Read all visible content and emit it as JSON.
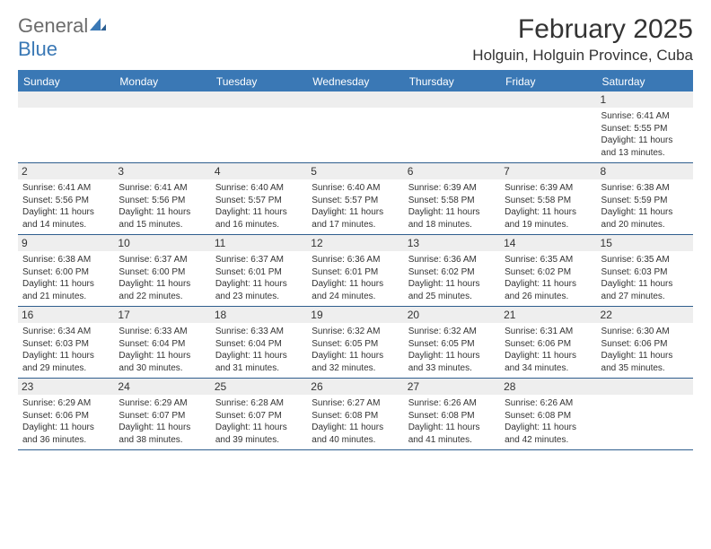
{
  "logo": {
    "text1": "General",
    "text2": "Blue"
  },
  "title": "February 2025",
  "location": "Holguin, Holguin Province, Cuba",
  "colors": {
    "header_bg": "#3a78b5",
    "header_text": "#ffffff",
    "daynum_bg": "#eeeeee",
    "body_text": "#333333",
    "row_border": "#2f5e8e",
    "logo_gray": "#6c6c6c",
    "logo_blue": "#3a78b5"
  },
  "typography": {
    "title_fontsize": 30,
    "location_fontsize": 17,
    "dayheader_fontsize": 12,
    "daynum_fontsize": 12,
    "body_fontsize": 10
  },
  "day_names": [
    "Sunday",
    "Monday",
    "Tuesday",
    "Wednesday",
    "Thursday",
    "Friday",
    "Saturday"
  ],
  "labels": {
    "sunrise": "Sunrise:",
    "sunset": "Sunset:",
    "daylight": "Daylight:"
  },
  "weeks": [
    [
      {
        "empty": true
      },
      {
        "empty": true
      },
      {
        "empty": true
      },
      {
        "empty": true
      },
      {
        "empty": true
      },
      {
        "empty": true
      },
      {
        "day": "1",
        "sunrise": "6:41 AM",
        "sunset": "5:55 PM",
        "daylight": "11 hours and 13 minutes."
      }
    ],
    [
      {
        "day": "2",
        "sunrise": "6:41 AM",
        "sunset": "5:56 PM",
        "daylight": "11 hours and 14 minutes."
      },
      {
        "day": "3",
        "sunrise": "6:41 AM",
        "sunset": "5:56 PM",
        "daylight": "11 hours and 15 minutes."
      },
      {
        "day": "4",
        "sunrise": "6:40 AM",
        "sunset": "5:57 PM",
        "daylight": "11 hours and 16 minutes."
      },
      {
        "day": "5",
        "sunrise": "6:40 AM",
        "sunset": "5:57 PM",
        "daylight": "11 hours and 17 minutes."
      },
      {
        "day": "6",
        "sunrise": "6:39 AM",
        "sunset": "5:58 PM",
        "daylight": "11 hours and 18 minutes."
      },
      {
        "day": "7",
        "sunrise": "6:39 AM",
        "sunset": "5:58 PM",
        "daylight": "11 hours and 19 minutes."
      },
      {
        "day": "8",
        "sunrise": "6:38 AM",
        "sunset": "5:59 PM",
        "daylight": "11 hours and 20 minutes."
      }
    ],
    [
      {
        "day": "9",
        "sunrise": "6:38 AM",
        "sunset": "6:00 PM",
        "daylight": "11 hours and 21 minutes."
      },
      {
        "day": "10",
        "sunrise": "6:37 AM",
        "sunset": "6:00 PM",
        "daylight": "11 hours and 22 minutes."
      },
      {
        "day": "11",
        "sunrise": "6:37 AM",
        "sunset": "6:01 PM",
        "daylight": "11 hours and 23 minutes."
      },
      {
        "day": "12",
        "sunrise": "6:36 AM",
        "sunset": "6:01 PM",
        "daylight": "11 hours and 24 minutes."
      },
      {
        "day": "13",
        "sunrise": "6:36 AM",
        "sunset": "6:02 PM",
        "daylight": "11 hours and 25 minutes."
      },
      {
        "day": "14",
        "sunrise": "6:35 AM",
        "sunset": "6:02 PM",
        "daylight": "11 hours and 26 minutes."
      },
      {
        "day": "15",
        "sunrise": "6:35 AM",
        "sunset": "6:03 PM",
        "daylight": "11 hours and 27 minutes."
      }
    ],
    [
      {
        "day": "16",
        "sunrise": "6:34 AM",
        "sunset": "6:03 PM",
        "daylight": "11 hours and 29 minutes."
      },
      {
        "day": "17",
        "sunrise": "6:33 AM",
        "sunset": "6:04 PM",
        "daylight": "11 hours and 30 minutes."
      },
      {
        "day": "18",
        "sunrise": "6:33 AM",
        "sunset": "6:04 PM",
        "daylight": "11 hours and 31 minutes."
      },
      {
        "day": "19",
        "sunrise": "6:32 AM",
        "sunset": "6:05 PM",
        "daylight": "11 hours and 32 minutes."
      },
      {
        "day": "20",
        "sunrise": "6:32 AM",
        "sunset": "6:05 PM",
        "daylight": "11 hours and 33 minutes."
      },
      {
        "day": "21",
        "sunrise": "6:31 AM",
        "sunset": "6:06 PM",
        "daylight": "11 hours and 34 minutes."
      },
      {
        "day": "22",
        "sunrise": "6:30 AM",
        "sunset": "6:06 PM",
        "daylight": "11 hours and 35 minutes."
      }
    ],
    [
      {
        "day": "23",
        "sunrise": "6:29 AM",
        "sunset": "6:06 PM",
        "daylight": "11 hours and 36 minutes."
      },
      {
        "day": "24",
        "sunrise": "6:29 AM",
        "sunset": "6:07 PM",
        "daylight": "11 hours and 38 minutes."
      },
      {
        "day": "25",
        "sunrise": "6:28 AM",
        "sunset": "6:07 PM",
        "daylight": "11 hours and 39 minutes."
      },
      {
        "day": "26",
        "sunrise": "6:27 AM",
        "sunset": "6:08 PM",
        "daylight": "11 hours and 40 minutes."
      },
      {
        "day": "27",
        "sunrise": "6:26 AM",
        "sunset": "6:08 PM",
        "daylight": "11 hours and 41 minutes."
      },
      {
        "day": "28",
        "sunrise": "6:26 AM",
        "sunset": "6:08 PM",
        "daylight": "11 hours and 42 minutes."
      },
      {
        "empty": true
      }
    ]
  ]
}
